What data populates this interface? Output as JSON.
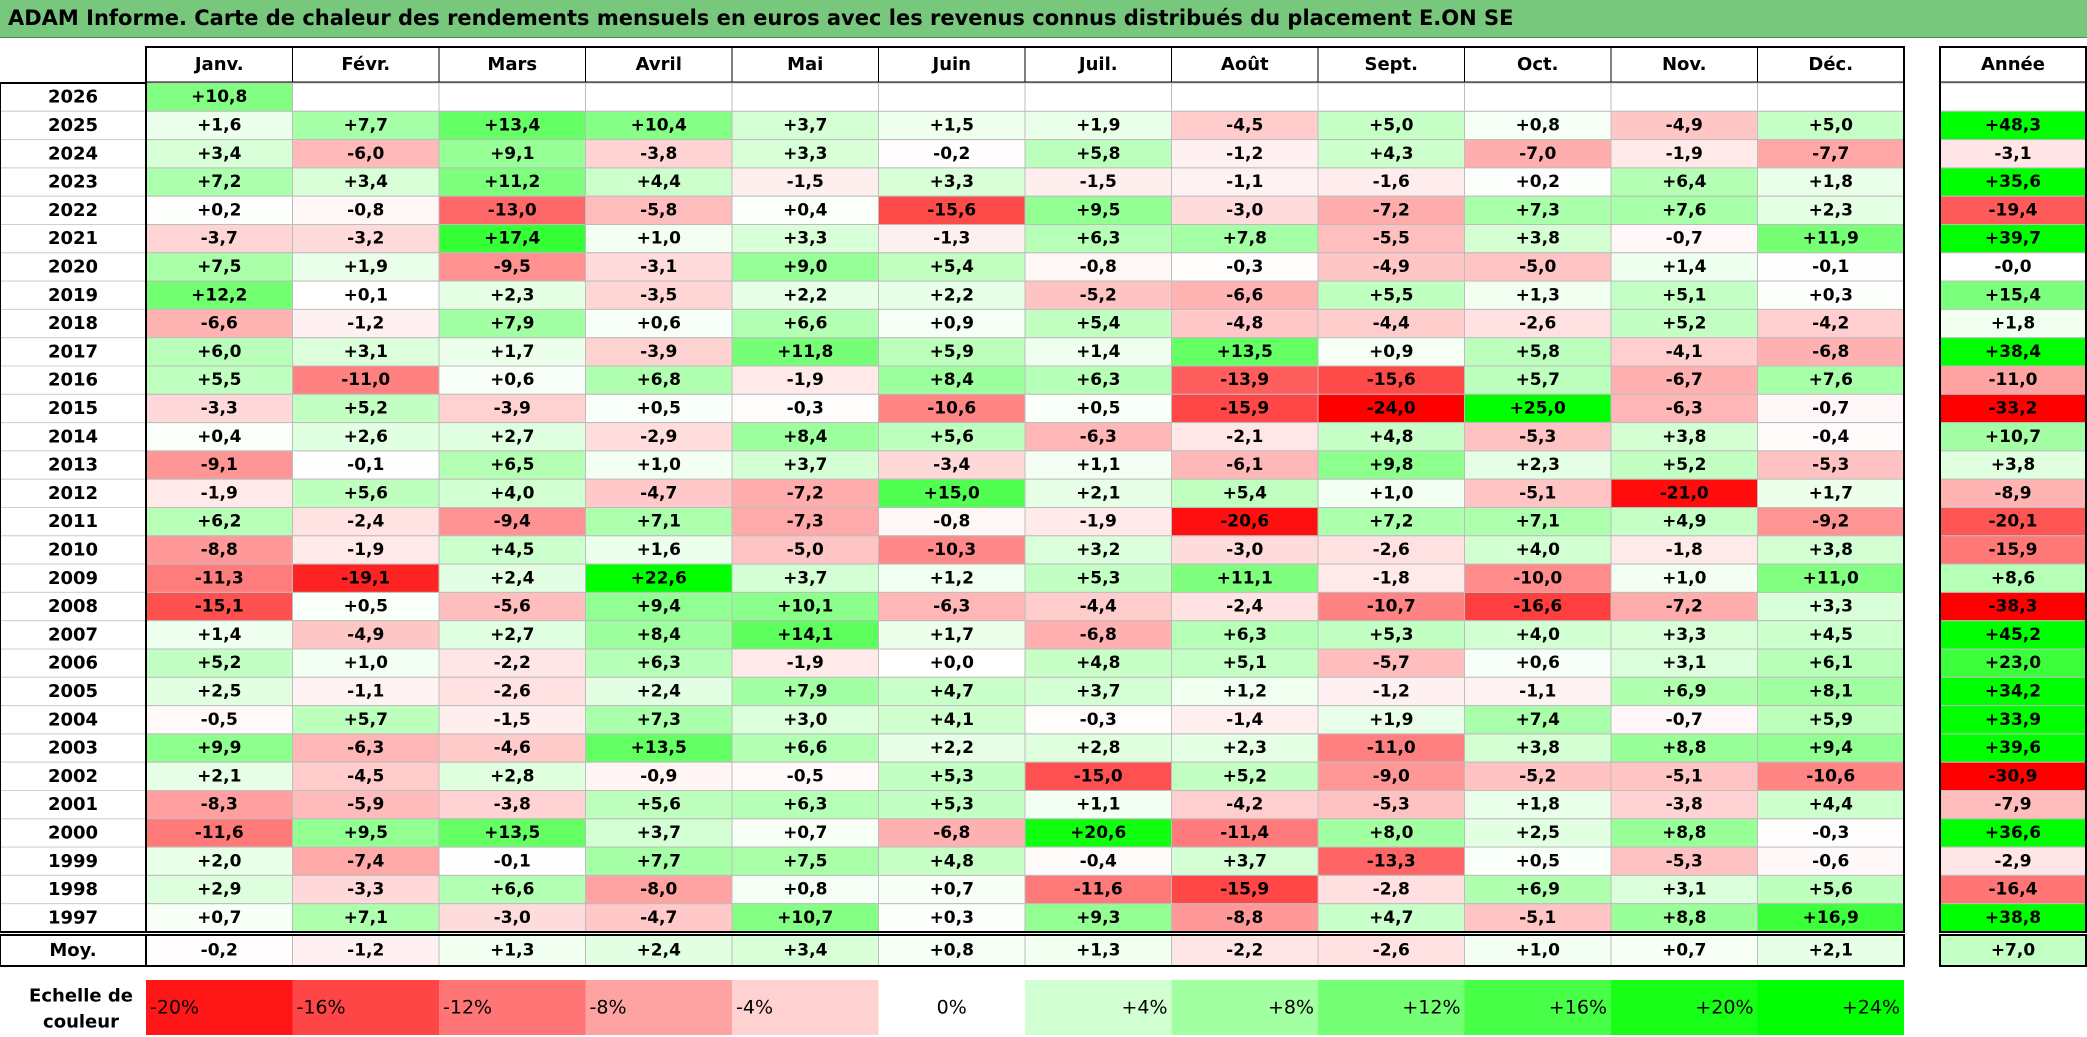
{
  "title": "ADAM Informe. Carte de chaleur des rendements mensuels en euros avec les revenus connus distribués du placement E.ON SE",
  "chart_data": {
    "type": "heatmap",
    "months": [
      "Janv.",
      "Févr.",
      "Mars",
      "Avril",
      "Mai",
      "Juin",
      "Juil.",
      "Août",
      "Sept.",
      "Oct.",
      "Nov.",
      "Déc."
    ],
    "year_header": "Année",
    "rows": [
      {
        "year": "2026",
        "months": [
          "+10,8",
          "",
          "",
          "",
          "",
          "",
          "",
          "",
          "",
          "",
          "",
          ""
        ],
        "annual": ""
      },
      {
        "year": "2025",
        "months": [
          "+1,6",
          "+7,7",
          "+13,4",
          "+10,4",
          "+3,7",
          "+1,5",
          "+1,9",
          "-4,5",
          "+5,0",
          "+0,8",
          "-4,9",
          "+5,0"
        ],
        "annual": "+48,3"
      },
      {
        "year": "2024",
        "months": [
          "+3,4",
          "-6,0",
          "+9,1",
          "-3,8",
          "+3,3",
          "-0,2",
          "+5,8",
          "-1,2",
          "+4,3",
          "-7,0",
          "-1,9",
          "-7,7"
        ],
        "annual": "-3,1"
      },
      {
        "year": "2023",
        "months": [
          "+7,2",
          "+3,4",
          "+11,2",
          "+4,4",
          "-1,5",
          "+3,3",
          "-1,5",
          "-1,1",
          "-1,6",
          "+0,2",
          "+6,4",
          "+1,8"
        ],
        "annual": "+35,6"
      },
      {
        "year": "2022",
        "months": [
          "+0,2",
          "-0,8",
          "-13,0",
          "-5,8",
          "+0,4",
          "-15,6",
          "+9,5",
          "-3,0",
          "-7,2",
          "+7,3",
          "+7,6",
          "+2,3"
        ],
        "annual": "-19,4"
      },
      {
        "year": "2021",
        "months": [
          "-3,7",
          "-3,2",
          "+17,4",
          "+1,0",
          "+3,3",
          "-1,3",
          "+6,3",
          "+7,8",
          "-5,5",
          "+3,8",
          "-0,7",
          "+11,9"
        ],
        "annual": "+39,7"
      },
      {
        "year": "2020",
        "months": [
          "+7,5",
          "+1,9",
          "-9,5",
          "-3,1",
          "+9,0",
          "+5,4",
          "-0,8",
          "-0,3",
          "-4,9",
          "-5,0",
          "+1,4",
          "-0,1"
        ],
        "annual": "-0,0"
      },
      {
        "year": "2019",
        "months": [
          "+12,2",
          "+0,1",
          "+2,3",
          "-3,5",
          "+2,2",
          "+2,2",
          "-5,2",
          "-6,6",
          "+5,5",
          "+1,3",
          "+5,1",
          "+0,3"
        ],
        "annual": "+15,4"
      },
      {
        "year": "2018",
        "months": [
          "-6,6",
          "-1,2",
          "+7,9",
          "+0,6",
          "+6,6",
          "+0,9",
          "+5,4",
          "-4,8",
          "-4,4",
          "-2,6",
          "+5,2",
          "-4,2"
        ],
        "annual": "+1,8"
      },
      {
        "year": "2017",
        "months": [
          "+6,0",
          "+3,1",
          "+1,7",
          "-3,9",
          "+11,8",
          "+5,9",
          "+1,4",
          "+13,5",
          "+0,9",
          "+5,8",
          "-4,1",
          "-6,8"
        ],
        "annual": "+38,4"
      },
      {
        "year": "2016",
        "months": [
          "+5,5",
          "-11,0",
          "+0,6",
          "+6,8",
          "-1,9",
          "+8,4",
          "+6,3",
          "-13,9",
          "-15,6",
          "+5,7",
          "-6,7",
          "+7,6"
        ],
        "annual": "-11,0"
      },
      {
        "year": "2015",
        "months": [
          "-3,3",
          "+5,2",
          "-3,9",
          "+0,5",
          "-0,3",
          "-10,6",
          "+0,5",
          "-15,9",
          "-24,0",
          "+25,0",
          "-6,3",
          "-0,7"
        ],
        "annual": "-33,2"
      },
      {
        "year": "2014",
        "months": [
          "+0,4",
          "+2,6",
          "+2,7",
          "-2,9",
          "+8,4",
          "+5,6",
          "-6,3",
          "-2,1",
          "+4,8",
          "-5,3",
          "+3,8",
          "-0,4"
        ],
        "annual": "+10,7"
      },
      {
        "year": "2013",
        "months": [
          "-9,1",
          "-0,1",
          "+6,5",
          "+1,0",
          "+3,7",
          "-3,4",
          "+1,1",
          "-6,1",
          "+9,8",
          "+2,3",
          "+5,2",
          "-5,3"
        ],
        "annual": "+3,8"
      },
      {
        "year": "2012",
        "months": [
          "-1,9",
          "+5,6",
          "+4,0",
          "-4,7",
          "-7,2",
          "+15,0",
          "+2,1",
          "+5,4",
          "+1,0",
          "-5,1",
          "-21,0",
          "+1,7"
        ],
        "annual": "-8,9"
      },
      {
        "year": "2011",
        "months": [
          "+6,2",
          "-2,4",
          "-9,4",
          "+7,1",
          "-7,3",
          "-0,8",
          "-1,9",
          "-20,6",
          "+7,2",
          "+7,1",
          "+4,9",
          "-9,2"
        ],
        "annual": "-20,1"
      },
      {
        "year": "2010",
        "months": [
          "-8,8",
          "-1,9",
          "+4,5",
          "+1,6",
          "-5,0",
          "-10,3",
          "+3,2",
          "-3,0",
          "-2,6",
          "+4,0",
          "-1,8",
          "+3,8"
        ],
        "annual": "-15,9"
      },
      {
        "year": "2009",
        "months": [
          "-11,3",
          "-19,1",
          "+2,4",
          "+22,6",
          "+3,7",
          "+1,2",
          "+5,3",
          "+11,1",
          "-1,8",
          "-10,0",
          "+1,0",
          "+11,0"
        ],
        "annual": "+8,6"
      },
      {
        "year": "2008",
        "months": [
          "-15,1",
          "+0,5",
          "-5,6",
          "+9,4",
          "+10,1",
          "-6,3",
          "-4,4",
          "-2,4",
          "-10,7",
          "-16,6",
          "-7,2",
          "+3,3"
        ],
        "annual": "-38,3"
      },
      {
        "year": "2007",
        "months": [
          "+1,4",
          "-4,9",
          "+2,7",
          "+8,4",
          "+14,1",
          "+1,7",
          "-6,8",
          "+6,3",
          "+5,3",
          "+4,0",
          "+3,3",
          "+4,5"
        ],
        "annual": "+45,2"
      },
      {
        "year": "2006",
        "months": [
          "+5,2",
          "+1,0",
          "-2,2",
          "+6,3",
          "-1,9",
          "+0,0",
          "+4,8",
          "+5,1",
          "-5,7",
          "+0,6",
          "+3,1",
          "+6,1"
        ],
        "annual": "+23,0"
      },
      {
        "year": "2005",
        "months": [
          "+2,5",
          "-1,1",
          "-2,6",
          "+2,4",
          "+7,9",
          "+4,7",
          "+3,7",
          "+1,2",
          "-1,2",
          "-1,1",
          "+6,9",
          "+8,1"
        ],
        "annual": "+34,2"
      },
      {
        "year": "2004",
        "months": [
          "-0,5",
          "+5,7",
          "-1,5",
          "+7,3",
          "+3,0",
          "+4,1",
          "-0,3",
          "-1,4",
          "+1,9",
          "+7,4",
          "-0,7",
          "+5,9"
        ],
        "annual": "+33,9"
      },
      {
        "year": "2003",
        "months": [
          "+9,9",
          "-6,3",
          "-4,6",
          "+13,5",
          "+6,6",
          "+2,2",
          "+2,8",
          "+2,3",
          "-11,0",
          "+3,8",
          "+8,8",
          "+9,4"
        ],
        "annual": "+39,6"
      },
      {
        "year": "2002",
        "months": [
          "+2,1",
          "-4,5",
          "+2,8",
          "-0,9",
          "-0,5",
          "+5,3",
          "-15,0",
          "+5,2",
          "-9,0",
          "-5,2",
          "-5,1",
          "-10,6"
        ],
        "annual": "-30,9"
      },
      {
        "year": "2001",
        "months": [
          "-8,3",
          "-5,9",
          "-3,8",
          "+5,6",
          "+6,3",
          "+5,3",
          "+1,1",
          "-4,2",
          "-5,3",
          "+1,8",
          "-3,8",
          "+4,4"
        ],
        "annual": "-7,9"
      },
      {
        "year": "2000",
        "months": [
          "-11,6",
          "+9,5",
          "+13,5",
          "+3,7",
          "+0,7",
          "-6,8",
          "+20,6",
          "-11,4",
          "+8,0",
          "+2,5",
          "+8,8",
          "-0,3"
        ],
        "annual": "+36,6"
      },
      {
        "year": "1999",
        "months": [
          "+2,0",
          "-7,4",
          "-0,1",
          "+7,7",
          "+7,5",
          "+4,8",
          "-0,4",
          "+3,7",
          "-13,3",
          "+0,5",
          "-5,3",
          "-0,6"
        ],
        "annual": "-2,9"
      },
      {
        "year": "1998",
        "months": [
          "+2,9",
          "-3,3",
          "+6,6",
          "-8,0",
          "+0,8",
          "+0,7",
          "-11,6",
          "-15,9",
          "-2,8",
          "+6,9",
          "+3,1",
          "+5,6"
        ],
        "annual": "-16,4"
      },
      {
        "year": "1997",
        "months": [
          "+0,7",
          "+7,1",
          "-3,0",
          "-4,7",
          "+10,7",
          "+0,3",
          "+9,3",
          "-8,8",
          "+4,7",
          "-5,1",
          "+8,8",
          "+16,9"
        ],
        "annual": "+38,8"
      }
    ],
    "average": {
      "label": "Moy.",
      "months": [
        "-0,2",
        "-1,2",
        "+1,3",
        "+2,4",
        "+3,4",
        "+0,8",
        "+1,3",
        "-2,2",
        "-2,6",
        "+1,0",
        "+0,7",
        "+2,1"
      ],
      "annual": "+7,0"
    },
    "scale": {
      "label_line1": "Echelle de",
      "label_line2": "couleur",
      "steps": [
        {
          "label": "-20%",
          "value": -20
        },
        {
          "label": "-16%",
          "value": -16
        },
        {
          "label": "-12%",
          "value": -12
        },
        {
          "label": "-8%",
          "value": -8
        },
        {
          "label": "-4%",
          "value": -4
        },
        {
          "label": "0%",
          "value": 0
        },
        {
          "label": "+4%",
          "value": 4
        },
        {
          "label": "+8%",
          "value": 8
        },
        {
          "label": "+12%",
          "value": 12
        },
        {
          "label": "+16%",
          "value": 16
        },
        {
          "label": "+20%",
          "value": 20
        },
        {
          "label": "+24%",
          "value": 24
        }
      ]
    },
    "colors": {
      "negative_max": "#ff0000",
      "neutral": "#ffffff",
      "positive_max": "#00ff00",
      "title_bar": "#77c77d"
    }
  }
}
